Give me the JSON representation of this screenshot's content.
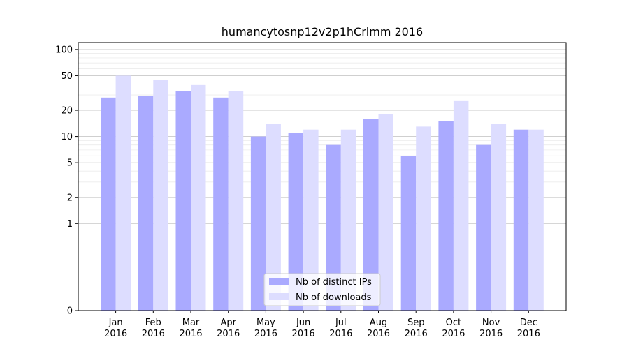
{
  "chart_data": {
    "type": "bar",
    "title": "humancytosnp12v2p1hCrlmm 2016",
    "xlabel": "",
    "ylabel": "",
    "yscale": "symlog",
    "ylim": [
      0,
      120
    ],
    "yticks": [
      0,
      1,
      2,
      5,
      10,
      20,
      50,
      100
    ],
    "ytick_labels": [
      "0",
      "1",
      "2",
      "5",
      "10",
      "20",
      "50",
      "100"
    ],
    "grid": "horizontal",
    "legend_position": "bottom-center",
    "categories": [
      [
        "Jan",
        "2016"
      ],
      [
        "Feb",
        "2016"
      ],
      [
        "Mar",
        "2016"
      ],
      [
        "Apr",
        "2016"
      ],
      [
        "May",
        "2016"
      ],
      [
        "Jun",
        "2016"
      ],
      [
        "Jul",
        "2016"
      ],
      [
        "Aug",
        "2016"
      ],
      [
        "Sep",
        "2016"
      ],
      [
        "Oct",
        "2016"
      ],
      [
        "Nov",
        "2016"
      ],
      [
        "Dec",
        "2016"
      ]
    ],
    "series": [
      {
        "name": "Nb of distinct IPs",
        "color": "#aaaaff",
        "values": [
          28,
          29,
          33,
          28,
          10,
          11,
          8,
          16,
          6,
          15,
          8,
          12
        ]
      },
      {
        "name": "Nb of downloads",
        "color": "#ddddff",
        "values": [
          50,
          45,
          39,
          33,
          14,
          12,
          12,
          18,
          13,
          26,
          14,
          12
        ]
      }
    ]
  }
}
